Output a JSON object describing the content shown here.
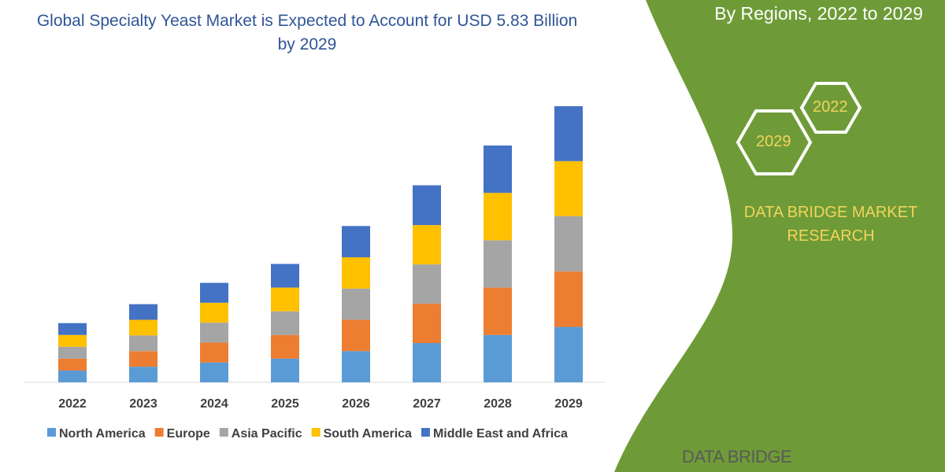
{
  "title": "Global Specialty Yeast Market is Expected to Account for USD 5.83 Billion by 2029",
  "side_title": "By Regions, 2022 to 2029",
  "hexagons": [
    "2022",
    "2029"
  ],
  "brand": "DATA BRIDGE MARKET RESEARCH",
  "logo_text": "DATA BRIDGE",
  "colors": {
    "green": "#6e9b37",
    "title": "#2f5597",
    "brand_text": "#f2d45c"
  },
  "chart_data": {
    "type": "bar",
    "stacked": true,
    "title": "Global Specialty Yeast Market is Expected to Account for USD 5.83 Billion by 2029",
    "categories": [
      "2022",
      "2023",
      "2024",
      "2025",
      "2026",
      "2027",
      "2028",
      "2029"
    ],
    "series": [
      {
        "name": "North America",
        "color": "#5b9bd5",
        "values": [
          0.25,
          0.33,
          0.42,
          0.5,
          0.66,
          0.83,
          1.0,
          1.17
        ]
      },
      {
        "name": "Europe",
        "color": "#ed7d31",
        "values": [
          0.25,
          0.33,
          0.42,
          0.5,
          0.66,
          0.83,
          1.0,
          1.17
        ]
      },
      {
        "name": "Asia Pacific",
        "color": "#a5a5a5",
        "values": [
          0.25,
          0.33,
          0.42,
          0.5,
          0.66,
          0.83,
          1.0,
          1.17
        ]
      },
      {
        "name": "South America",
        "color": "#ffc000",
        "values": [
          0.25,
          0.33,
          0.42,
          0.5,
          0.66,
          0.83,
          1.0,
          1.16
        ]
      },
      {
        "name": "Middle East and Africa",
        "color": "#4472c4",
        "values": [
          0.25,
          0.33,
          0.42,
          0.5,
          0.66,
          0.84,
          1.0,
          1.16
        ]
      }
    ],
    "ylim": [
      0,
      5.83
    ],
    "grid": false,
    "legend": "bottom",
    "y_axis_shown": false
  }
}
